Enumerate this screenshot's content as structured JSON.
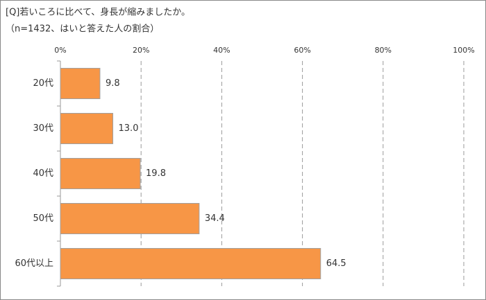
{
  "chart_data": {
    "type": "bar",
    "orientation": "horizontal",
    "title": "[Q]若いころに比べて、身長が縮みましたか。",
    "subtitle": "（n=1432、はいと答えた人の割合）",
    "categories": [
      "20代",
      "30代",
      "40代",
      "50代",
      "60代以上"
    ],
    "values": [
      9.8,
      13.0,
      19.8,
      34.4,
      64.5
    ],
    "value_labels": [
      "9.8",
      "13.0",
      "19.8",
      "34.4",
      "64.5"
    ],
    "color": "#f79646",
    "xlim": [
      0,
      100
    ],
    "xticks": [
      {
        "value": 0,
        "label": "0%"
      },
      {
        "value": 20,
        "label": "20%"
      },
      {
        "value": 40,
        "label": "40%"
      },
      {
        "value": 60,
        "label": "60%"
      },
      {
        "value": 80,
        "label": "80%"
      },
      {
        "value": 100,
        "label": "100%"
      }
    ],
    "grid": true
  }
}
